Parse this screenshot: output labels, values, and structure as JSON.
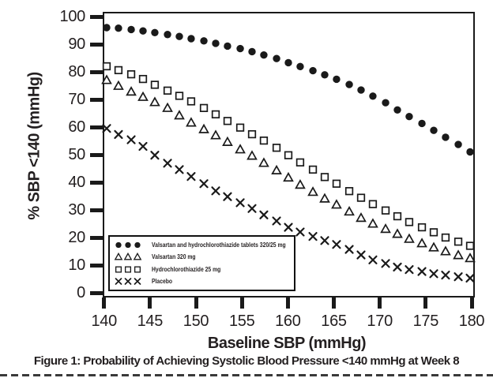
{
  "figure": {
    "caption": "Figure 1: Probability of Achieving Systolic Blood Pressure <140 mmHg at Week 8"
  },
  "chart_data": {
    "type": "scatter",
    "title": "",
    "xlabel": "Baseline SBP (mmHg)",
    "ylabel": "% SBP <140 (mmHg)",
    "xlim": [
      140,
      180
    ],
    "ylim": [
      0,
      100
    ],
    "x_ticks": [
      140,
      145,
      150,
      155,
      160,
      165,
      170,
      175,
      180
    ],
    "y_ticks": [
      0,
      10,
      20,
      30,
      40,
      50,
      60,
      70,
      80,
      90,
      100
    ],
    "grid": false,
    "legend_position": "lower-left-inside",
    "marker_color": "#1a1a1a",
    "x": [
      140,
      141.3,
      142.7,
      144,
      145.3,
      146.7,
      148,
      149.3,
      150.7,
      152,
      153.3,
      154.7,
      156,
      157.3,
      158.7,
      160,
      161.3,
      162.7,
      164,
      165.3,
      166.7,
      168,
      169.3,
      170.7,
      172,
      173.3,
      174.7,
      176,
      177.3,
      178.7,
      180
    ],
    "series": [
      {
        "name": "Valsartan and hydrochlorothiazide tablets 320/25 mg",
        "marker": "filled-circle",
        "values": [
          96,
          95.8,
          95.3,
          94.8,
          94.2,
          93.5,
          92.8,
          92,
          91.2,
          90.3,
          89.3,
          88.4,
          87.3,
          86.1,
          84.8,
          83.3,
          81.9,
          80.4,
          78.9,
          77.3,
          75.4,
          73.4,
          71.2,
          68.8,
          66.2,
          63.8,
          61.3,
          58.8,
          56.3,
          53.7,
          51
        ]
      },
      {
        "name": "Valsartan 320 mg",
        "marker": "open-triangle",
        "values": [
          77,
          74.9,
          72.8,
          70.9,
          69,
          66.9,
          64.2,
          61.6,
          59.2,
          57,
          54.6,
          51.9,
          49.6,
          47,
          44.3,
          41.7,
          39.1,
          36.5,
          34.1,
          31.9,
          29.4,
          27.1,
          25,
          23.1,
          21.3,
          19.5,
          17.9,
          16.4,
          15,
          13.6,
          12.5
        ]
      },
      {
        "name": "Hydrochlorothiazide 25 mg",
        "marker": "open-square",
        "values": [
          82,
          80.6,
          79.1,
          77.4,
          75.3,
          73.2,
          71.3,
          69.3,
          66.9,
          64.6,
          62.2,
          59.8,
          57.4,
          55.1,
          52.5,
          49.8,
          47.2,
          44.6,
          41.9,
          39.5,
          36.8,
          34.4,
          32.1,
          29.8,
          27.7,
          25.6,
          23.7,
          21.9,
          20,
          18.5,
          17
        ]
      },
      {
        "name": "Placebo",
        "marker": "x-cross",
        "values": [
          59.5,
          57.3,
          55.4,
          53,
          49.8,
          46.9,
          44.6,
          42.1,
          39.5,
          36.9,
          34.8,
          32.6,
          30.5,
          28.2,
          26,
          23.7,
          22,
          20.4,
          18.9,
          17.5,
          15.7,
          13.7,
          11.9,
          10.6,
          9.3,
          8.4,
          7.7,
          6.9,
          6.4,
          5.8,
          5.3
        ]
      }
    ]
  }
}
